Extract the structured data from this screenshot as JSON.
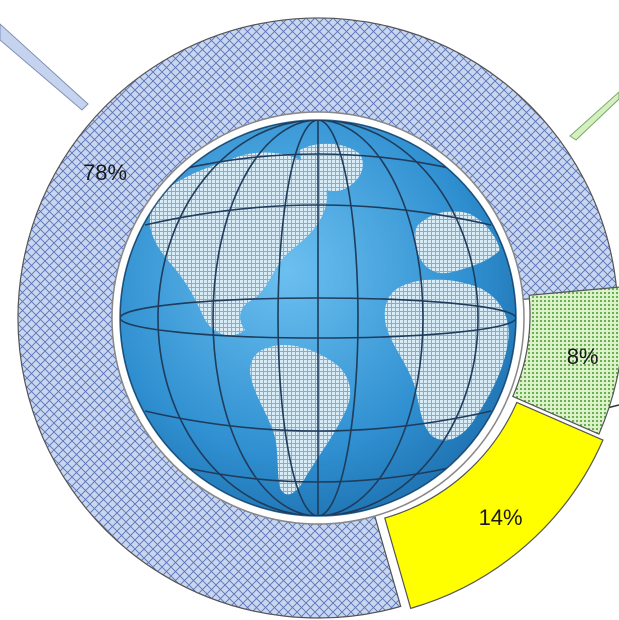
{
  "chart_data": {
    "type": "pie",
    "categories": [
      "",
      "",
      ""
    ],
    "values": [
      78,
      8,
      14
    ],
    "labels": [
      "78%",
      "8%",
      "14%"
    ],
    "colors": {
      "slice_1": "#c5d3ee",
      "slice_1_hatch": "#5a74b8",
      "slice_2": "#d4f0bf",
      "slice_2_hatch": "#4d9a3f",
      "slice_3": "#ffff00",
      "outline": "#555555",
      "globe_ocean": "#3d9ad6",
      "globe_land": "#c7e3f3",
      "globe_grid": "#1f3c5c"
    },
    "center_image": "globe-icon",
    "legend": "none"
  }
}
